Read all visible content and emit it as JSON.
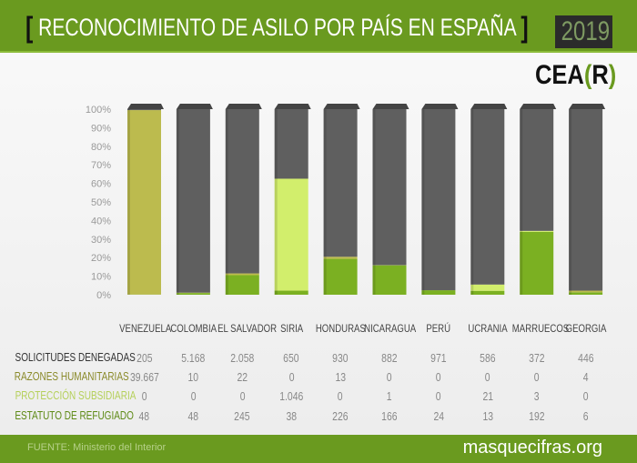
{
  "header": {
    "title": "RECONOCIMIENTO DE ASILO POR PAÍS EN ESPAÑA",
    "year": "2019",
    "logo": "CEA(R)"
  },
  "footer": {
    "source": "FUENTE: Ministerio del Interior",
    "site": "masquecifras.org"
  },
  "chart_data": {
    "type": "bar",
    "stacked": true,
    "normalized": true,
    "title": "RECONOCIMIENTO DE ASILO POR PAÍS EN ESPAÑA",
    "categories": [
      "VENEZUELA",
      "COLOMBIA",
      "EL SALVADOR",
      "SIRIA",
      "HONDURAS",
      "NICARAGUA",
      "PERÚ",
      "UCRANIA",
      "MARRUECOS",
      "GEORGIA"
    ],
    "yticks": [
      "0%",
      "10%",
      "20%",
      "30%",
      "40%",
      "50%",
      "60%",
      "70%",
      "80%",
      "90%",
      "100%"
    ],
    "ylim": [
      0,
      100
    ],
    "series": [
      {
        "name": "ESTATUTO DE REFUGIADO",
        "color": "#7bb022",
        "values": [
          48,
          48,
          245,
          38,
          226,
          166,
          24,
          13,
          192,
          6
        ],
        "labels": [
          "48",
          "48",
          "245",
          "38",
          "226",
          "166",
          "24",
          "13",
          "192",
          "6"
        ]
      },
      {
        "name": "PROTECCIÓN SUBSIDIARIA",
        "color": "#d2ee6c",
        "values": [
          0,
          0,
          0,
          1046,
          0,
          1,
          0,
          21,
          3,
          0
        ],
        "labels": [
          "0",
          "0",
          "0",
          "1.046",
          "0",
          "1",
          "0",
          "21",
          "3",
          "0"
        ]
      },
      {
        "name": "RAZONES HUMANITARIAS",
        "color": "#bcbb4e",
        "values": [
          39667,
          10,
          22,
          0,
          13,
          0,
          0,
          0,
          0,
          4
        ],
        "labels": [
          "39.667",
          "10",
          "22",
          "0",
          "13",
          "0",
          "0",
          "0",
          "0",
          "4"
        ]
      },
      {
        "name": "SOLICITUDES DENEGADAS",
        "color": "#5f5f5f",
        "values": [
          205,
          5168,
          2058,
          650,
          930,
          882,
          971,
          586,
          372,
          446
        ],
        "labels": [
          "205",
          "5.168",
          "2.058",
          "650",
          "930",
          "882",
          "971",
          "586",
          "372",
          "446"
        ]
      }
    ],
    "table_row_order": [
      "SOLICITUDES DENEGADAS",
      "RAZONES HUMANITARIAS",
      "PROTECCIÓN SUBSIDIARIA",
      "ESTATUTO DE REFUGIADO"
    ],
    "row_label_colors": [
      "#333333",
      "#8a8a2a",
      "#b5d05a",
      "#5e8a16"
    ]
  }
}
